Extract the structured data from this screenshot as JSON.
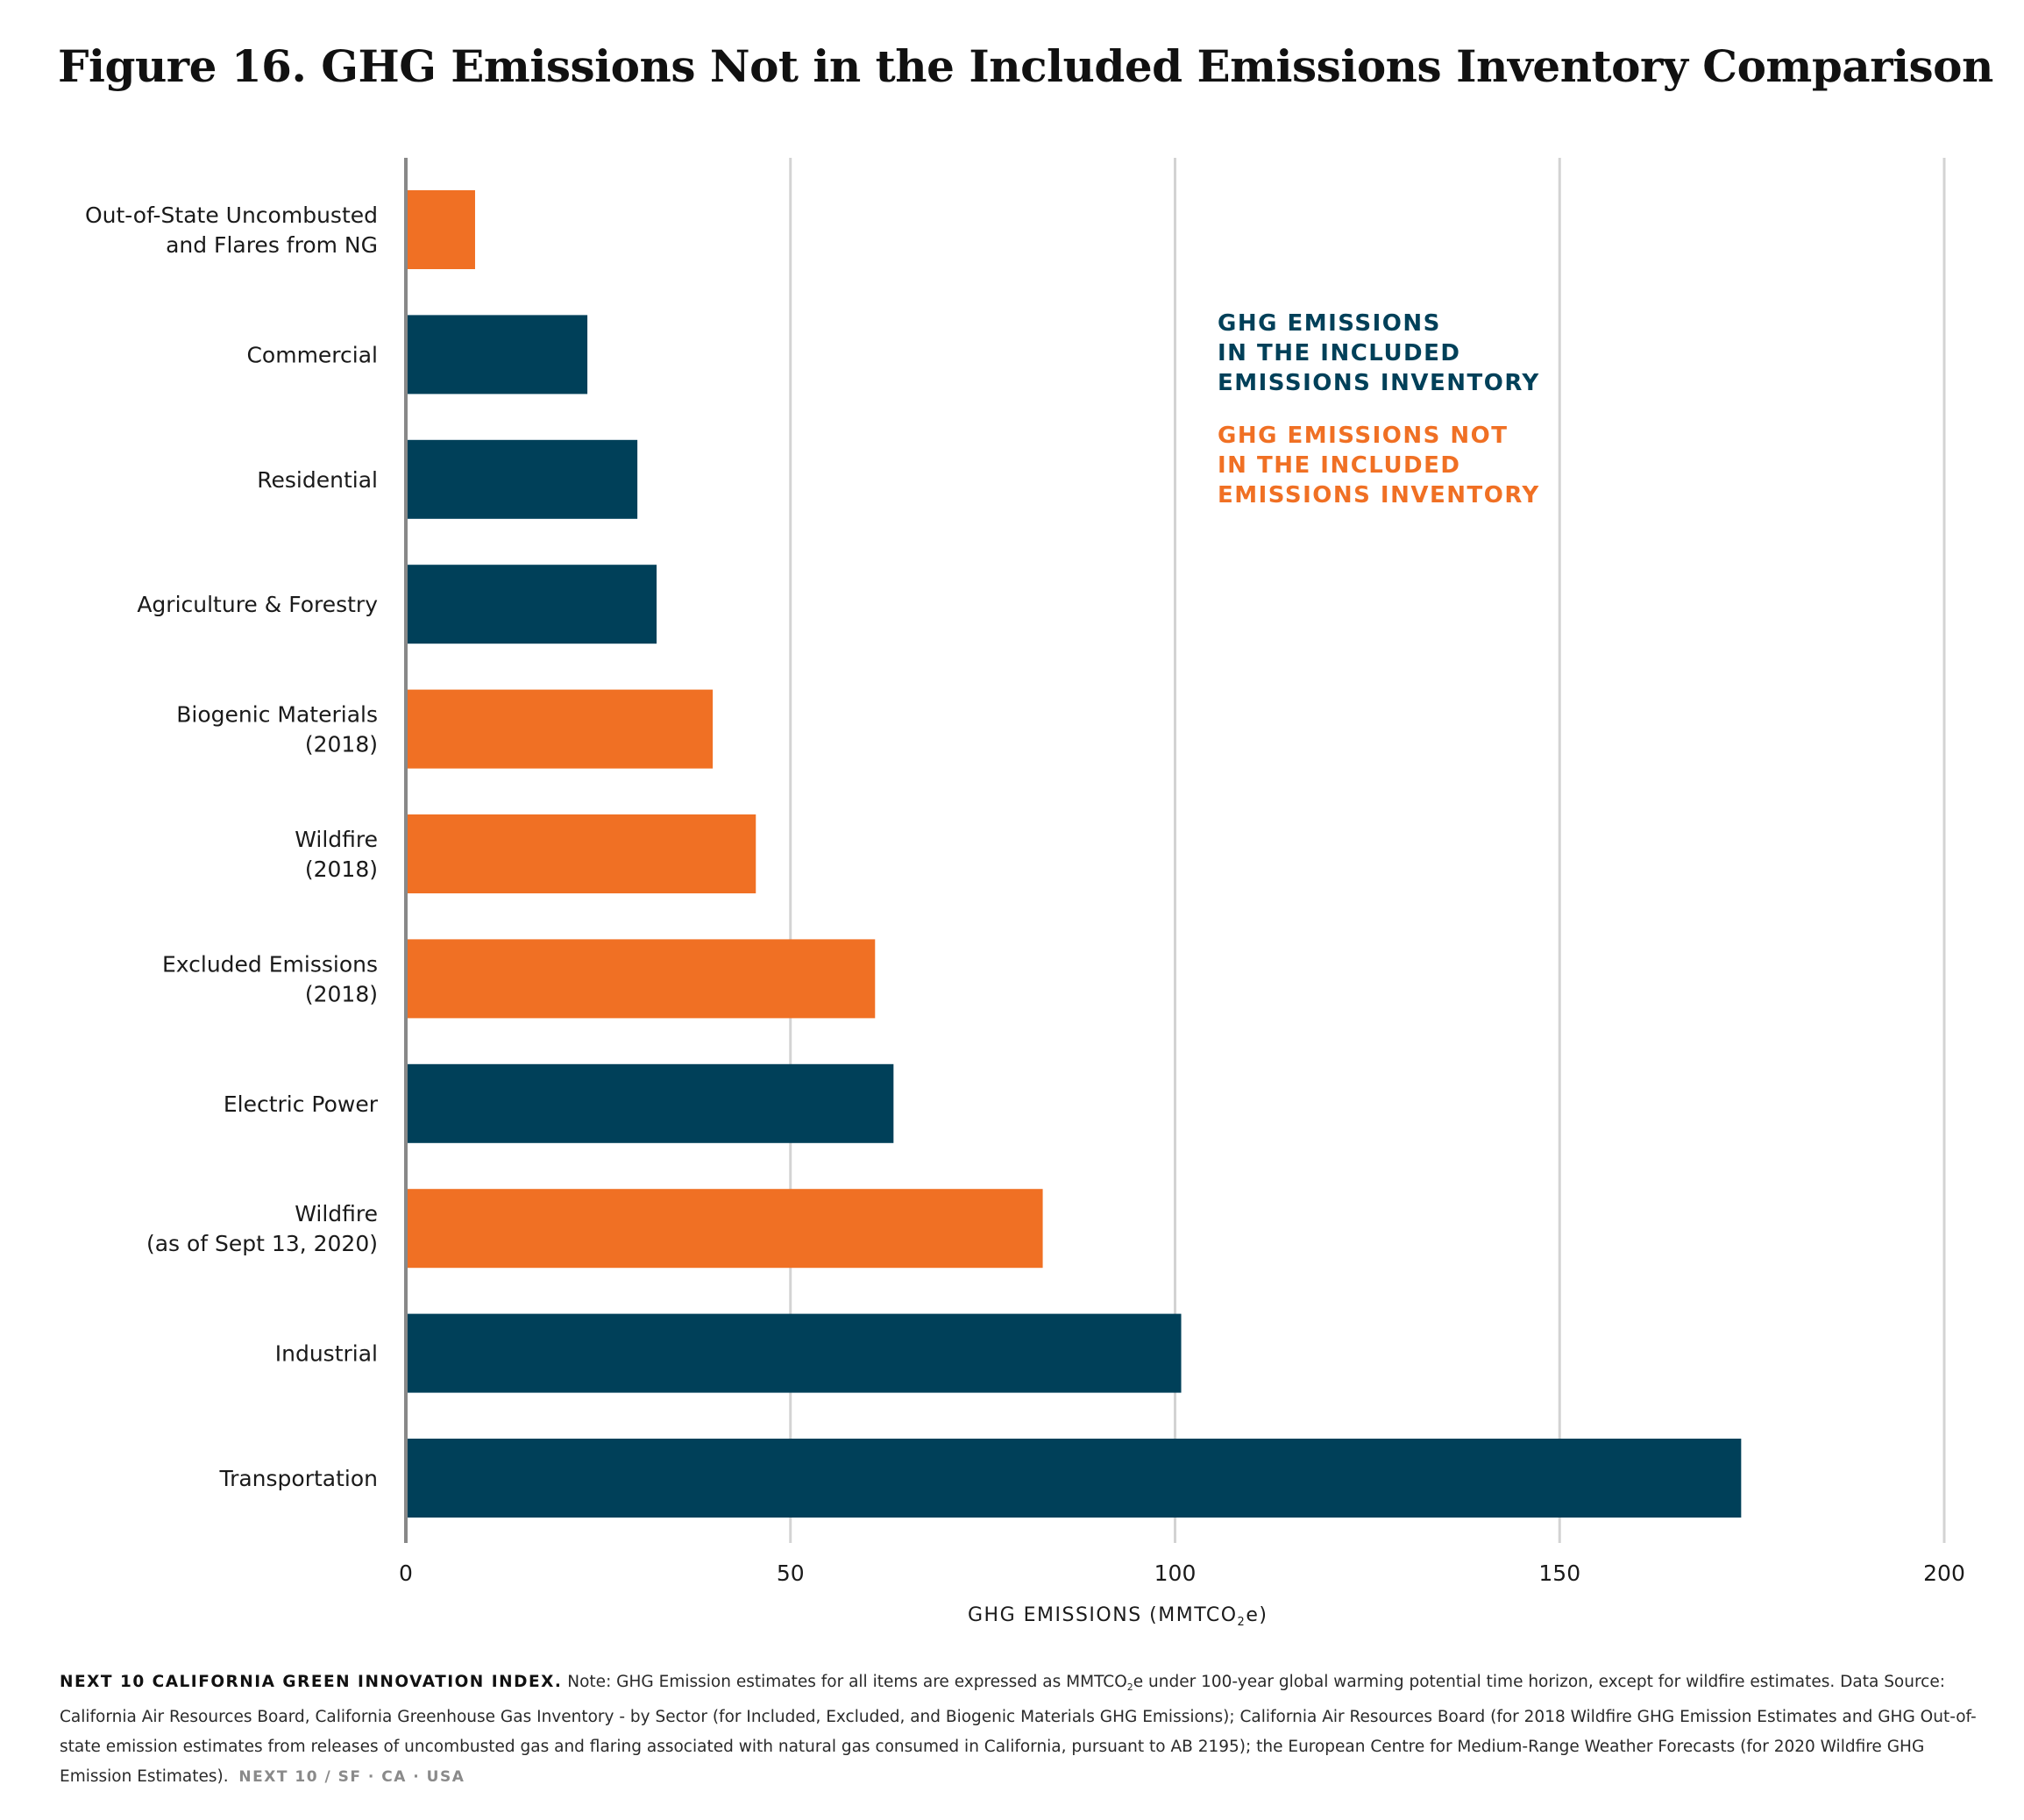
{
  "title": "Figure 16. GHG Emissions Not in the Included Emissions Inventory Comparison",
  "colors": {
    "included": "#004059",
    "not_included": "#f07024",
    "grid": "#d3d3d3",
    "axis": "#888888"
  },
  "legend": {
    "included": "GHG EMISSIONS\nIN THE INCLUDED\nEMISSIONS INVENTORY",
    "not_included": "GHG EMISSIONS NOT\nIN THE INCLUDED\nEMISSIONS INVENTORY"
  },
  "x_axis_title": {
    "prefix": "GHG EMISSIONS (MMTCO",
    "sub": "2",
    "suffix": "e)"
  },
  "footnote": {
    "org": "NEXT 10 CALIFORNIA GREEN INNOVATION INDEX.",
    "note_part1": " Note: GHG Emission estimates for all items are expressed as MMTCO",
    "note_sub": "2",
    "note_part2": "e under 100-year global warming potential time horizon, except for wildfire estimates. Data Source: California Air Resources Board, California Greenhouse Gas Inventory - by Sector (for Included, Excluded, and Biogenic Materials GHG Emissions); California Air Resources Board (for 2018 Wildfire GHG Emission Estimates and GHG Out-of-state emission estimates from releases of uncombusted gas and flaring associated with natural gas consumed in California, pursuant to AB 2195); the European Centre for Medium-Range Weather Forecasts (for 2020 Wildfire GHG Emission Estimates).",
    "brand": "NEXT 10 / SF · CA · USA"
  },
  "chart_data": {
    "type": "bar",
    "orientation": "horizontal",
    "xlim": [
      0,
      200
    ],
    "xticks": [
      "0",
      "50",
      "100",
      "150",
      "200"
    ],
    "grid": true,
    "legend_position": "top-right",
    "bars": [
      {
        "label": [
          "Out-of-State Uncombusted",
          "and Flares from NG"
        ],
        "value": 9,
        "group": "not_included"
      },
      {
        "label": [
          "Commercial"
        ],
        "value": 23.6,
        "group": "included"
      },
      {
        "label": [
          "Residential"
        ],
        "value": 30.1,
        "group": "included"
      },
      {
        "label": [
          "Agriculture & Forestry"
        ],
        "value": 32.6,
        "group": "included"
      },
      {
        "label": [
          "Biogenic Materials",
          "(2018)"
        ],
        "value": 39.9,
        "group": "not_included"
      },
      {
        "label": [
          "Wildfire",
          "(2018)"
        ],
        "value": 45.5,
        "group": "not_included"
      },
      {
        "label": [
          "Excluded Emissions",
          "(2018)"
        ],
        "value": 61,
        "group": "not_included"
      },
      {
        "label": [
          "Electric Power"
        ],
        "value": 63.4,
        "group": "included"
      },
      {
        "label": [
          "Wildfire",
          "(as of Sept 13, 2020)"
        ],
        "value": 82.8,
        "group": "not_included"
      },
      {
        "label": [
          "Industrial"
        ],
        "value": 100.8,
        "group": "included"
      },
      {
        "label": [
          "Transportation"
        ],
        "value": 173.6,
        "group": "included"
      }
    ]
  }
}
